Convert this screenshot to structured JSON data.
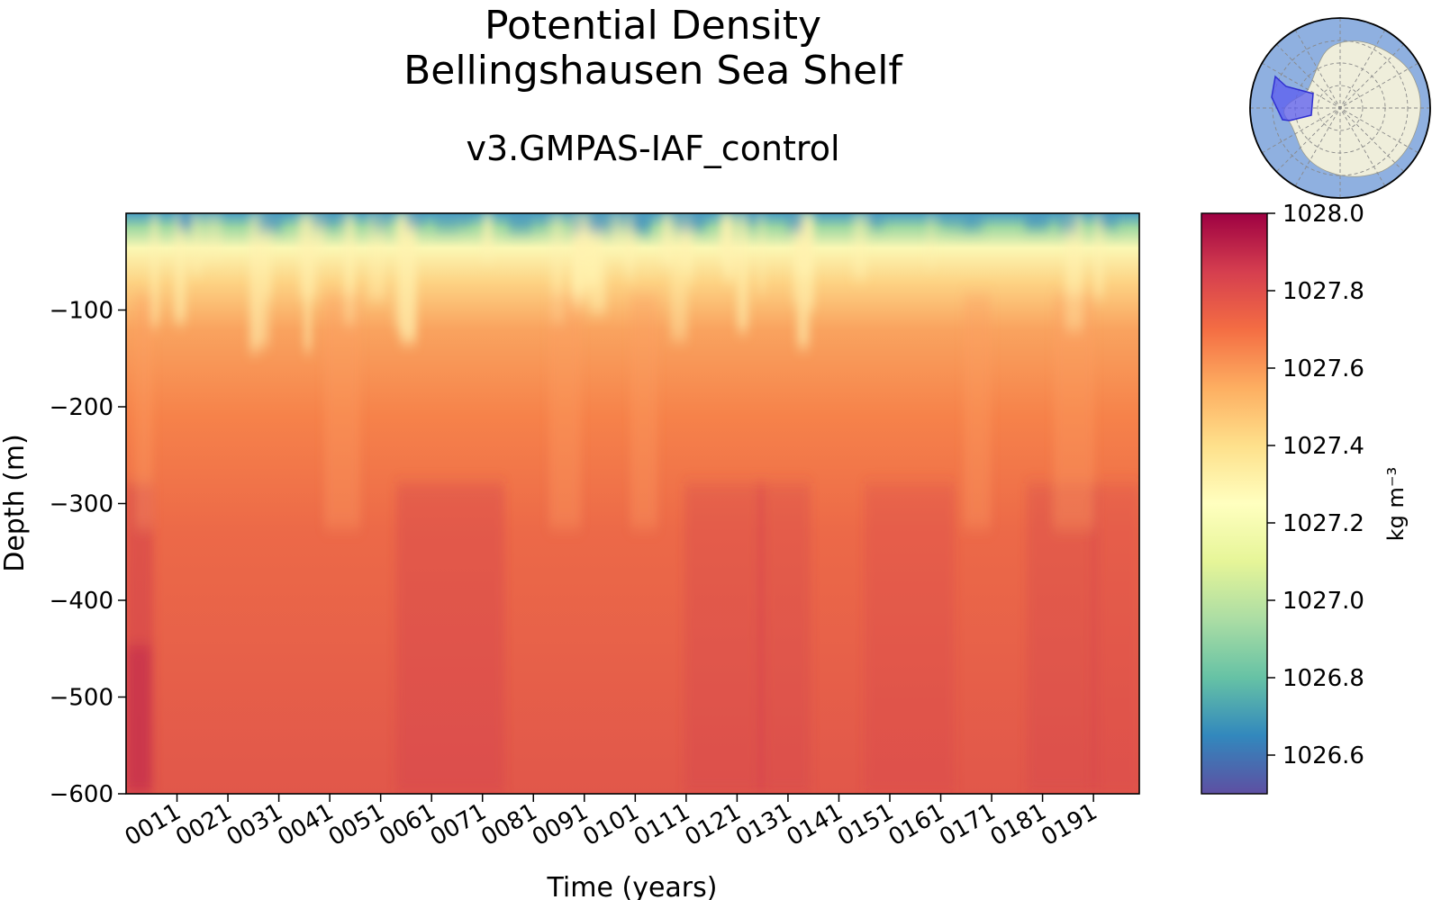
{
  "chart_data": {
    "type": "heatmap",
    "title": "Potential Density",
    "title_line2": "Bellingshausen Sea Shelf",
    "subtitle": "v3.GMPAS-IAF_control",
    "xlabel": "Time (years)",
    "ylabel": "Depth (m)",
    "colorbar_label": "kg m⁻³",
    "colormap": "Spectral_r",
    "x_ticks": [
      "0011",
      "0021",
      "0031",
      "0041",
      "0051",
      "0061",
      "0071",
      "0081",
      "0091",
      "0101",
      "0111",
      "0121",
      "0131",
      "0141",
      "0151",
      "0161",
      "0171",
      "0181",
      "0191"
    ],
    "x_range": [
      1,
      200
    ],
    "y_ticks": [
      -100,
      -200,
      -300,
      -400,
      -500,
      -600
    ],
    "y_tick_labels": [
      "−100",
      "−200",
      "−300",
      "−400",
      "−500",
      "−600"
    ],
    "ylim": [
      -600,
      0
    ],
    "colorbar_ticks": [
      1028.0,
      1027.8,
      1027.6,
      1027.4,
      1027.2,
      1027.0,
      1026.8,
      1026.6
    ],
    "colorbar_tick_labels": [
      "1028.0",
      "1027.8",
      "1027.6",
      "1027.4",
      "1027.2",
      "1027.0",
      "1026.8",
      "1026.6"
    ],
    "colorbar_range": [
      1026.5,
      1028.0
    ],
    "approx_depth_profile": [
      {
        "depth": 0,
        "density": 1026.7
      },
      {
        "depth": -30,
        "density": 1027.1
      },
      {
        "depth": -60,
        "density": 1027.3
      },
      {
        "depth": -100,
        "density": 1027.48
      },
      {
        "depth": -200,
        "density": 1027.62
      },
      {
        "depth": -300,
        "density": 1027.67
      },
      {
        "depth": -400,
        "density": 1027.71
      },
      {
        "depth": -500,
        "density": 1027.73
      },
      {
        "depth": -600,
        "density": 1027.76
      }
    ]
  },
  "inset_map": {
    "region": "Bellingshausen Sea Shelf",
    "ocean_color": "#8fb0e0",
    "land_color": "#efeedb",
    "region_color": "#5b5cf0"
  }
}
